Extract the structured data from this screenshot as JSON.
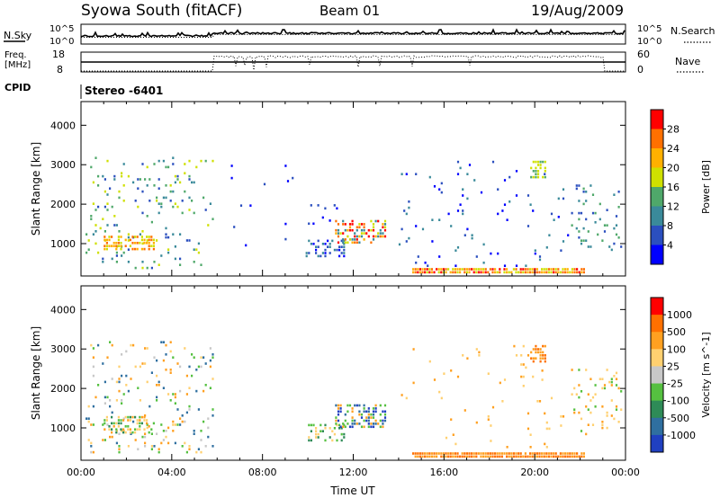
{
  "header": {
    "station": "Syowa South (fitACF)",
    "beam": "Beam 01",
    "date": "19/Aug/2009"
  },
  "status_panels": {
    "nsky_label": "N.Sky",
    "nsky_ticks": [
      "10^5",
      "10^0"
    ],
    "nsearch_label": "N.Search",
    "nsearch_ticks": [
      "10^5",
      "10^0"
    ],
    "freq_label_1": "Freq.",
    "freq_label_2": "[MHz]",
    "freq_ticks": [
      "18",
      "8"
    ],
    "nave_label": "Nave",
    "nave_ticks": [
      "60",
      "0"
    ],
    "cpid_label": "CPID",
    "cpid_value": "Stereo -6401"
  },
  "chart_data": [
    {
      "type": "heatmap",
      "panel": "power",
      "ylabel": "Slant Range [km]",
      "xlabel": "",
      "x_ticks": [
        "00:00",
        "04:00",
        "08:00",
        "12:00",
        "16:00",
        "20:00",
        "00:00"
      ],
      "x_range_hours": [
        0,
        24
      ],
      "y_ticks": [
        1000,
        2000,
        3000,
        4000
      ],
      "ylim": [
        180,
        4600
      ],
      "colorbar": {
        "label": "Power [dB]",
        "ticks": [
          "4",
          "8",
          "12",
          "16",
          "20",
          "24",
          "28"
        ],
        "colors": [
          "#0000ff",
          "#2b4fbf",
          "#3a8a9a",
          "#4fa86a",
          "#cfe000",
          "#ffb000",
          "#ff7000",
          "#ff0000"
        ]
      },
      "regions": [
        {
          "x0": 0.2,
          "x1": 5.8,
          "y0": 400,
          "y1": 3200,
          "density": 0.08,
          "levels": [
            1,
            2,
            3,
            4
          ]
        },
        {
          "x0": 1.0,
          "x1": 3.2,
          "y0": 850,
          "y1": 1200,
          "density": 0.6,
          "levels": [
            4,
            5,
            6
          ]
        },
        {
          "x0": 9.8,
          "x1": 11.6,
          "y0": 650,
          "y1": 1100,
          "density": 0.35,
          "levels": [
            0,
            1,
            2
          ]
        },
        {
          "x0": 11.2,
          "x1": 13.4,
          "y0": 1000,
          "y1": 1600,
          "density": 0.45,
          "levels": [
            2,
            4,
            5,
            6,
            7
          ]
        },
        {
          "x0": 10.0,
          "x1": 11.5,
          "y0": 1500,
          "y1": 2000,
          "density": 0.08,
          "levels": [
            0,
            1
          ]
        },
        {
          "x0": 14.6,
          "x1": 22.2,
          "y0": 250,
          "y1": 380,
          "density": 0.9,
          "levels": [
            4,
            5,
            6,
            7
          ]
        },
        {
          "x0": 14.0,
          "x1": 21.5,
          "y0": 400,
          "y1": 3100,
          "density": 0.03,
          "levels": [
            0,
            1,
            2
          ]
        },
        {
          "x0": 19.8,
          "x1": 20.5,
          "y0": 2700,
          "y1": 3100,
          "density": 0.6,
          "levels": [
            3,
            4
          ]
        },
        {
          "x0": 21.6,
          "x1": 23.8,
          "y0": 800,
          "y1": 2500,
          "density": 0.1,
          "levels": [
            1,
            2,
            3
          ]
        },
        {
          "x0": 6.5,
          "x1": 9.5,
          "y0": 300,
          "y1": 3000,
          "density": 0.01,
          "levels": [
            0,
            1
          ]
        }
      ]
    },
    {
      "type": "heatmap",
      "panel": "velocity",
      "ylabel": "Slant Range [km]",
      "xlabel": "Time UT",
      "x_ticks": [
        "00:00",
        "04:00",
        "08:00",
        "12:00",
        "16:00",
        "20:00",
        "00:00"
      ],
      "x_range_hours": [
        0,
        24
      ],
      "y_ticks": [
        1000,
        2000,
        3000,
        4000
      ],
      "ylim": [
        180,
        4600
      ],
      "colorbar": {
        "label": "Velocity [m s^-1]",
        "ticks": [
          "1000",
          "500",
          "100",
          "25",
          "-25",
          "-100",
          "-500",
          "-1000"
        ],
        "colors": [
          "#2040c0",
          "#2f6fa0",
          "#2e8b57",
          "#55c040",
          "#c8c8c8",
          "#ffd070",
          "#ffa020",
          "#ff7000",
          "#ff0000"
        ]
      },
      "regions": [
        {
          "x0": 0.2,
          "x1": 5.8,
          "y0": 400,
          "y1": 3200,
          "density": 0.09,
          "levels": [
            1,
            3,
            4,
            5,
            6
          ]
        },
        {
          "x0": 1.0,
          "x1": 3.2,
          "y0": 850,
          "y1": 1300,
          "density": 0.5,
          "levels": [
            2,
            3,
            5,
            6
          ]
        },
        {
          "x0": 9.8,
          "x1": 11.6,
          "y0": 650,
          "y1": 1100,
          "density": 0.35,
          "levels": [
            2,
            3,
            5
          ]
        },
        {
          "x0": 11.2,
          "x1": 13.4,
          "y0": 1000,
          "y1": 1600,
          "density": 0.45,
          "levels": [
            0,
            1,
            3,
            6
          ]
        },
        {
          "x0": 14.6,
          "x1": 22.2,
          "y0": 250,
          "y1": 380,
          "density": 0.9,
          "levels": [
            6,
            7
          ]
        },
        {
          "x0": 14.0,
          "x1": 21.5,
          "y0": 400,
          "y1": 3100,
          "density": 0.03,
          "levels": [
            5,
            6
          ]
        },
        {
          "x0": 19.8,
          "x1": 20.5,
          "y0": 2700,
          "y1": 3100,
          "density": 0.6,
          "levels": [
            6,
            7
          ]
        },
        {
          "x0": 21.6,
          "x1": 23.8,
          "y0": 800,
          "y1": 2500,
          "density": 0.1,
          "levels": [
            3,
            5,
            6
          ]
        }
      ]
    }
  ]
}
